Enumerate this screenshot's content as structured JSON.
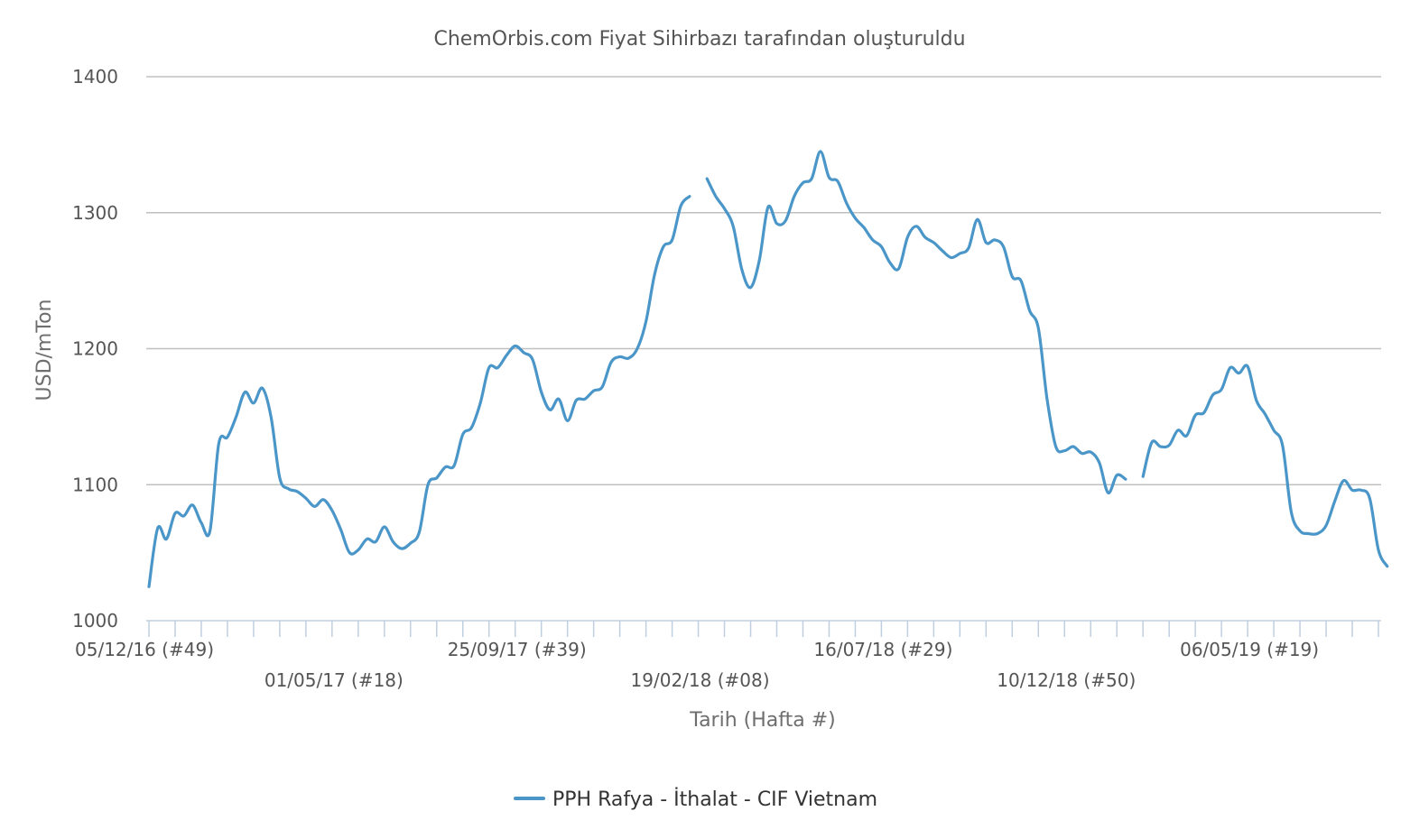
{
  "chart_data": {
    "type": "line",
    "title": "ChemOrbis.com Fiyat Sihirbazı tarafından oluşturuldu",
    "xlabel": "Tarih (Hafta #)",
    "ylabel": "USD/mTon",
    "ylim": [
      1000,
      1400
    ],
    "yticks": [
      "1000",
      "1100",
      "1200",
      "1300",
      "1400"
    ],
    "ytick_values": [
      1000,
      1100,
      1200,
      1300,
      1400
    ],
    "x_tick_labels": [
      {
        "label": "05/12/16 (#49)",
        "week_index": 0
      },
      {
        "label": "01/05/17 (#18)",
        "week_index": 21
      },
      {
        "label": "25/09/17 (#39)",
        "week_index": 42
      },
      {
        "label": "19/02/18 (#08)",
        "week_index": 63
      },
      {
        "label": "16/07/18 (#29)",
        "week_index": 84
      },
      {
        "label": "10/12/18 (#50)",
        "week_index": 105
      },
      {
        "label": "06/05/19 (#19)",
        "week_index": 126
      }
    ],
    "minor_tick_interval_weeks": 3,
    "total_weeks": 141,
    "grid": true,
    "legend": "bottom",
    "series": [
      {
        "name": "PPH Rafya - İthalat - CIF Vietnam",
        "color": "#4a96c8",
        "segments": [
          [
            [
              0,
              1025
            ],
            [
              1,
              1068
            ],
            [
              2,
              1060
            ],
            [
              3,
              1079
            ],
            [
              4,
              1077
            ],
            [
              5,
              1085
            ],
            [
              6,
              1072
            ],
            [
              7,
              1066
            ],
            [
              8,
              1130
            ],
            [
              9,
              1135
            ],
            [
              10,
              1150
            ],
            [
              11,
              1168
            ],
            [
              12,
              1160
            ],
            [
              13,
              1171
            ],
            [
              14,
              1150
            ],
            [
              15,
              1105
            ],
            [
              16,
              1097
            ],
            [
              17,
              1095
            ],
            [
              18,
              1090
            ],
            [
              19,
              1084
            ],
            [
              20,
              1089
            ],
            [
              21,
              1081
            ],
            [
              22,
              1067
            ],
            [
              23,
              1050
            ],
            [
              24,
              1052
            ],
            [
              25,
              1060
            ],
            [
              26,
              1058
            ],
            [
              27,
              1069
            ],
            [
              28,
              1058
            ],
            [
              29,
              1053
            ],
            [
              30,
              1057
            ],
            [
              31,
              1065
            ],
            [
              32,
              1100
            ],
            [
              33,
              1105
            ],
            [
              34,
              1113
            ],
            [
              35,
              1114
            ],
            [
              36,
              1137
            ],
            [
              37,
              1142
            ],
            [
              38,
              1160
            ],
            [
              39,
              1186
            ],
            [
              40,
              1186
            ],
            [
              41,
              1195
            ],
            [
              42,
              1202
            ],
            [
              43,
              1197
            ],
            [
              44,
              1192
            ],
            [
              45,
              1168
            ],
            [
              46,
              1155
            ],
            [
              47,
              1163
            ],
            [
              48,
              1147
            ],
            [
              49,
              1162
            ],
            [
              50,
              1163
            ],
            [
              51,
              1169
            ],
            [
              52,
              1172
            ],
            [
              53,
              1190
            ],
            [
              54,
              1194
            ],
            [
              55,
              1193
            ],
            [
              56,
              1200
            ],
            [
              57,
              1220
            ],
            [
              58,
              1255
            ],
            [
              59,
              1275
            ],
            [
              60,
              1280
            ],
            [
              61,
              1305
            ],
            [
              62,
              1312
            ]
          ],
          [
            [
              64,
              1325
            ],
            [
              65,
              1312
            ],
            [
              66,
              1303
            ],
            [
              67,
              1290
            ],
            [
              68,
              1258
            ],
            [
              69,
              1245
            ],
            [
              70,
              1265
            ],
            [
              71,
              1304
            ],
            [
              72,
              1292
            ],
            [
              73,
              1294
            ],
            [
              74,
              1312
            ],
            [
              75,
              1322
            ],
            [
              76,
              1325
            ],
            [
              77,
              1345
            ],
            [
              78,
              1326
            ],
            [
              79,
              1323
            ],
            [
              80,
              1307
            ],
            [
              81,
              1296
            ],
            [
              82,
              1289
            ],
            [
              83,
              1280
            ],
            [
              84,
              1275
            ],
            [
              85,
              1263
            ],
            [
              86,
              1259
            ],
            [
              87,
              1282
            ],
            [
              88,
              1290
            ],
            [
              89,
              1282
            ],
            [
              90,
              1278
            ],
            [
              91,
              1272
            ],
            [
              92,
              1267
            ],
            [
              93,
              1270
            ],
            [
              94,
              1274
            ],
            [
              95,
              1295
            ],
            [
              96,
              1278
            ],
            [
              97,
              1280
            ],
            [
              98,
              1275
            ],
            [
              99,
              1253
            ],
            [
              100,
              1250
            ],
            [
              101,
              1228
            ],
            [
              102,
              1215
            ],
            [
              103,
              1163
            ],
            [
              104,
              1128
            ],
            [
              105,
              1125
            ],
            [
              106,
              1128
            ],
            [
              107,
              1123
            ],
            [
              108,
              1124
            ],
            [
              109,
              1116
            ],
            [
              110,
              1094
            ],
            [
              111,
              1107
            ],
            [
              112,
              1104
            ]
          ],
          [
            [
              114,
              1106
            ],
            [
              115,
              1131
            ],
            [
              116,
              1128
            ],
            [
              117,
              1129
            ],
            [
              118,
              1140
            ],
            [
              119,
              1136
            ],
            [
              120,
              1151
            ],
            [
              121,
              1153
            ],
            [
              122,
              1166
            ],
            [
              123,
              1170
            ],
            [
              124,
              1186
            ],
            [
              125,
              1182
            ],
            [
              126,
              1187
            ],
            [
              127,
              1162
            ],
            [
              128,
              1152
            ],
            [
              129,
              1140
            ],
            [
              130,
              1129
            ],
            [
              131,
              1080
            ],
            [
              132,
              1066
            ],
            [
              133,
              1064
            ],
            [
              134,
              1064
            ],
            [
              135,
              1070
            ],
            [
              136,
              1088
            ],
            [
              137,
              1103
            ],
            [
              138,
              1096
            ],
            [
              139,
              1096
            ],
            [
              140,
              1090
            ],
            [
              141,
              1052
            ],
            [
              142,
              1040
            ]
          ]
        ]
      }
    ]
  }
}
